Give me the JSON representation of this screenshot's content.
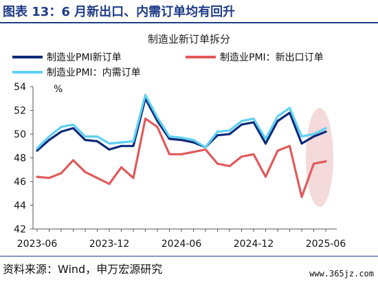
{
  "figure": {
    "title": "图表 13：6 月新出口、内需订单均有回升",
    "source": "资料来源：Wind，申万宏源研究",
    "watermark": "www.365jz.com"
  },
  "colors": {
    "title": "#1f3c88",
    "new_orders": "#0c2a7a",
    "export_orders": "#e05a5a",
    "domestic_orders": "#5fd0f2",
    "highlight": "#f3d6d6"
  },
  "chart_data": {
    "type": "line",
    "title": "制造业新订单拆分",
    "ylabel": "%",
    "xlabel": "",
    "ylim": [
      42,
      54
    ],
    "yticks": [
      42,
      44,
      46,
      48,
      50,
      52,
      54
    ],
    "x": [
      "2023-06",
      "2023-07",
      "2023-08",
      "2023-09",
      "2023-10",
      "2023-11",
      "2023-12",
      "2024-01",
      "2024-02",
      "2024-03",
      "2024-04",
      "2024-05",
      "2024-06",
      "2024-07",
      "2024-08",
      "2024-09",
      "2024-10",
      "2024-11",
      "2024-12",
      "2025-01",
      "2025-02",
      "2025-03",
      "2025-04",
      "2025-05",
      "2025-06"
    ],
    "xtick_labels": [
      "2023-06",
      "2023-12",
      "2024-06",
      "2024-12",
      "2025-06"
    ],
    "legend_position": "top",
    "grid": false,
    "series": [
      {
        "name": "制造业PMI新订单",
        "color": "#0c2a7a",
        "values": [
          48.6,
          49.5,
          50.2,
          50.5,
          49.5,
          49.4,
          48.7,
          49.0,
          49.0,
          53.0,
          51.1,
          49.6,
          49.5,
          49.3,
          48.9,
          49.9,
          50.0,
          50.8,
          51.0,
          49.2,
          51.1,
          51.8,
          49.2,
          49.8,
          50.2
        ]
      },
      {
        "name": "制造业PMI：新出口订单",
        "color": "#e05a5a",
        "values": [
          46.4,
          46.3,
          46.7,
          47.8,
          46.8,
          46.3,
          45.8,
          47.2,
          46.3,
          51.3,
          50.6,
          48.3,
          48.3,
          48.5,
          48.7,
          47.5,
          47.3,
          48.1,
          48.3,
          46.4,
          48.6,
          49.0,
          44.7,
          47.5,
          47.7
        ]
      },
      {
        "name": "制造业PMI：内需订单",
        "color": "#5fd0f2",
        "values": [
          48.8,
          49.8,
          50.6,
          50.8,
          49.8,
          49.8,
          49.2,
          49.3,
          49.4,
          53.3,
          51.4,
          49.8,
          49.7,
          49.5,
          48.9,
          50.2,
          50.3,
          51.1,
          51.3,
          49.6,
          51.5,
          52.2,
          49.8,
          50.0,
          50.5
        ]
      }
    ]
  }
}
